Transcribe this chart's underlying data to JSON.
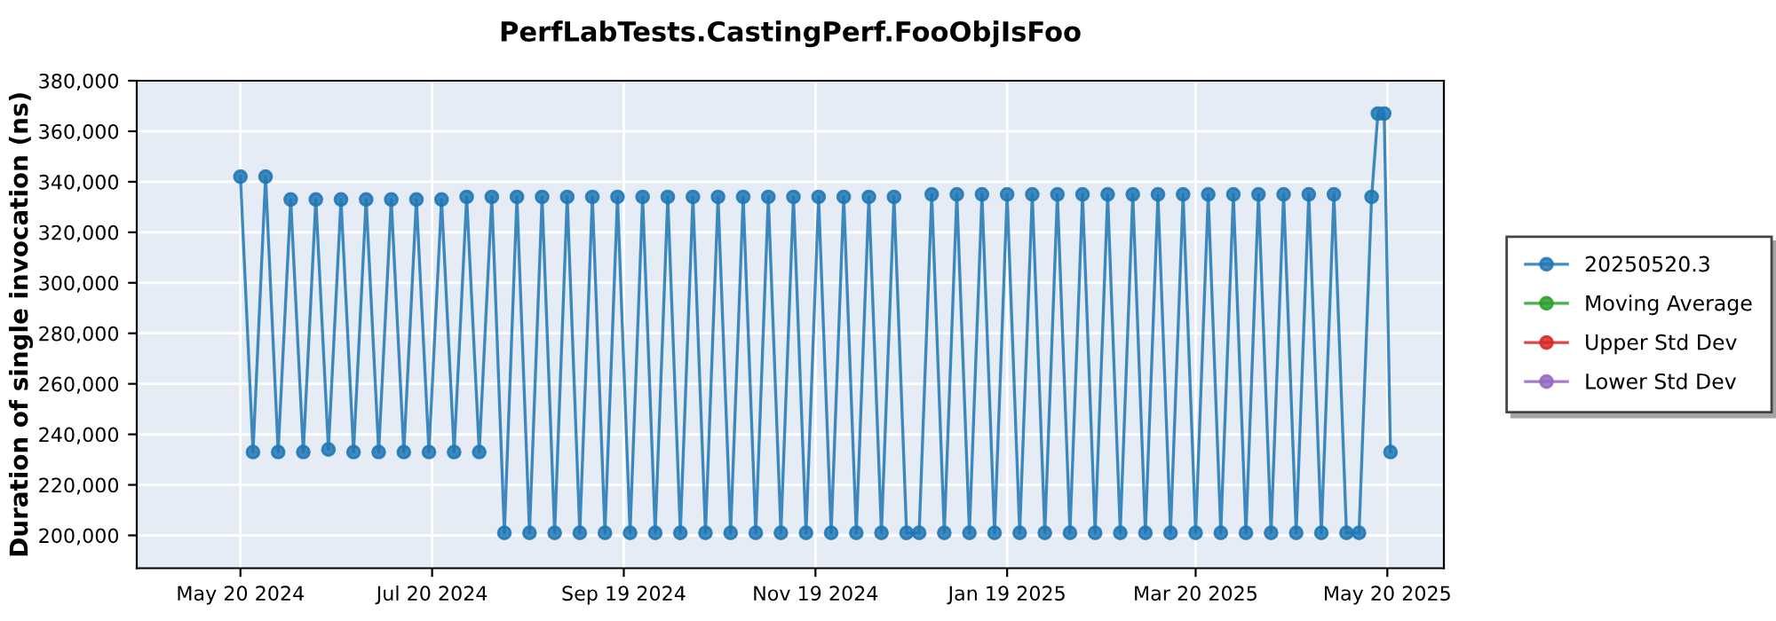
{
  "chart_data": {
    "type": "line",
    "title": "PerfLabTests.CastingPerf.FooObjIsFoo",
    "ylabel": "Duration of single invocation (ns)",
    "x": [
      "2024-05-20",
      "2024-05-24",
      "2024-05-28",
      "2024-06-01",
      "2024-06-05",
      "2024-06-09",
      "2024-06-13",
      "2024-06-17",
      "2024-06-21",
      "2024-06-25",
      "2024-06-29",
      "2024-07-03",
      "2024-07-07",
      "2024-07-11",
      "2024-07-15",
      "2024-07-19",
      "2024-07-23",
      "2024-07-27",
      "2024-07-31",
      "2024-08-04",
      "2024-08-08",
      "2024-08-12",
      "2024-08-16",
      "2024-08-20",
      "2024-08-24",
      "2024-08-28",
      "2024-09-01",
      "2024-09-05",
      "2024-09-09",
      "2024-09-13",
      "2024-09-17",
      "2024-09-21",
      "2024-09-25",
      "2024-09-29",
      "2024-10-03",
      "2024-10-07",
      "2024-10-11",
      "2024-10-15",
      "2024-10-19",
      "2024-10-23",
      "2024-10-27",
      "2024-10-31",
      "2024-11-04",
      "2024-11-08",
      "2024-11-12",
      "2024-11-16",
      "2024-11-20",
      "2024-11-24",
      "2024-11-28",
      "2024-12-02",
      "2024-12-06",
      "2024-12-10",
      "2024-12-14",
      "2024-12-18",
      "2024-12-22",
      "2024-12-26",
      "2024-12-30",
      "2025-01-03",
      "2025-01-07",
      "2025-01-11",
      "2025-01-15",
      "2025-01-19",
      "2025-01-23",
      "2025-01-27",
      "2025-01-31",
      "2025-02-04",
      "2025-02-08",
      "2025-02-12",
      "2025-02-16",
      "2025-02-20",
      "2025-02-24",
      "2025-02-28",
      "2025-03-04",
      "2025-03-08",
      "2025-03-12",
      "2025-03-16",
      "2025-03-20",
      "2025-03-24",
      "2025-03-28",
      "2025-04-01",
      "2025-04-05",
      "2025-04-09",
      "2025-04-13",
      "2025-04-17",
      "2025-04-21",
      "2025-04-25",
      "2025-04-29",
      "2025-05-03",
      "2025-05-07",
      "2025-05-11",
      "2025-05-15",
      "2025-05-17",
      "2025-05-19",
      "2025-05-21"
    ],
    "series": [
      {
        "name": "20250520.3",
        "color": "#1f77b4",
        "values": [
          342000,
          233000,
          342000,
          233000,
          333000,
          233000,
          333000,
          234000,
          333000,
          233000,
          333000,
          233000,
          333000,
          233000,
          333000,
          233000,
          333000,
          233000,
          334000,
          233000,
          334000,
          201000,
          334000,
          201000,
          334000,
          201000,
          334000,
          201000,
          334000,
          201000,
          334000,
          201000,
          334000,
          201000,
          334000,
          201000,
          334000,
          201000,
          334000,
          201000,
          334000,
          201000,
          334000,
          201000,
          334000,
          201000,
          334000,
          201000,
          334000,
          201000,
          334000,
          201000,
          334000,
          201000,
          201000,
          335000,
          201000,
          335000,
          201000,
          335000,
          201000,
          335000,
          201000,
          335000,
          201000,
          335000,
          201000,
          335000,
          201000,
          335000,
          201000,
          335000,
          201000,
          335000,
          201000,
          335000,
          201000,
          335000,
          201000,
          335000,
          201000,
          335000,
          201000,
          335000,
          201000,
          335000,
          201000,
          335000,
          201000,
          201000,
          334000,
          367000,
          367000,
          233000
        ]
      },
      {
        "name": "Moving Average",
        "color": "#2ca02c",
        "values": [
          null,
          null,
          null,
          null,
          null,
          null,
          null,
          null,
          null,
          null,
          null,
          null,
          null,
          null,
          null,
          null,
          null,
          null,
          null,
          null,
          null,
          null,
          null,
          null,
          null,
          null,
          null,
          null,
          null,
          null,
          null,
          null,
          null,
          null,
          null,
          null,
          null,
          null,
          null,
          null,
          null,
          null,
          null,
          null,
          null,
          null,
          null,
          null,
          null,
          null,
          null,
          null,
          null,
          null,
          null,
          null,
          null,
          null,
          null,
          null,
          null,
          null,
          null,
          null,
          null,
          null,
          null,
          null,
          null,
          null,
          null,
          null,
          null,
          null,
          null,
          null,
          null,
          null,
          null,
          null,
          null,
          null,
          null,
          null,
          null,
          null,
          null,
          null,
          null,
          null,
          null,
          null,
          null,
          null
        ]
      },
      {
        "name": "Upper Std Dev",
        "color": "#d62728",
        "values": [
          null,
          null,
          null,
          null,
          null,
          null,
          null,
          null,
          null,
          null,
          null,
          null,
          null,
          null,
          null,
          null,
          null,
          null,
          null,
          null,
          null,
          null,
          null,
          null,
          null,
          null,
          null,
          null,
          null,
          null,
          null,
          null,
          null,
          null,
          null,
          null,
          null,
          null,
          null,
          null,
          null,
          null,
          null,
          null,
          null,
          null,
          null,
          null,
          null,
          null,
          null,
          null,
          null,
          null,
          null,
          null,
          null,
          null,
          null,
          null,
          null,
          null,
          null,
          null,
          null,
          null,
          null,
          null,
          null,
          null,
          null,
          null,
          null,
          null,
          null,
          null,
          null,
          null,
          null,
          null,
          null,
          null,
          null,
          null,
          null,
          null,
          null,
          null,
          null,
          null,
          null,
          null,
          null,
          null
        ]
      },
      {
        "name": "Lower Std Dev",
        "color": "#9467bd",
        "values": [
          null,
          null,
          null,
          null,
          null,
          null,
          null,
          null,
          null,
          null,
          null,
          null,
          null,
          null,
          null,
          null,
          null,
          null,
          null,
          null,
          null,
          null,
          null,
          null,
          null,
          null,
          null,
          null,
          null,
          null,
          null,
          null,
          null,
          null,
          null,
          null,
          null,
          null,
          null,
          null,
          null,
          null,
          null,
          null,
          null,
          null,
          null,
          null,
          null,
          null,
          null,
          null,
          null,
          null,
          null,
          null,
          null,
          null,
          null,
          null,
          null,
          null,
          null,
          null,
          null,
          null,
          null,
          null,
          null,
          null,
          null,
          null,
          null,
          null,
          null,
          null,
          null,
          null,
          null,
          null,
          null,
          null,
          null,
          null,
          null,
          null,
          null,
          null,
          null,
          null,
          null,
          null,
          null,
          null
        ]
      }
    ],
    "xlim": [
      "2024-04-17",
      "2025-06-07"
    ],
    "xticks": [
      {
        "value": "2024-05-20",
        "label": "May 20 2024"
      },
      {
        "value": "2024-07-20",
        "label": "Jul 20 2024"
      },
      {
        "value": "2024-09-19",
        "label": "Sep 19 2024"
      },
      {
        "value": "2024-11-19",
        "label": "Nov 19 2024"
      },
      {
        "value": "2025-01-19",
        "label": "Jan 19 2025"
      },
      {
        "value": "2025-03-20",
        "label": "Mar 20 2025"
      },
      {
        "value": "2025-05-20",
        "label": "May 20 2025"
      }
    ],
    "ylim": [
      187000,
      380000
    ],
    "yticks": [
      {
        "value": 200000,
        "label": "200,000"
      },
      {
        "value": 220000,
        "label": "220,000"
      },
      {
        "value": 240000,
        "label": "240,000"
      },
      {
        "value": 260000,
        "label": "260,000"
      },
      {
        "value": 280000,
        "label": "280,000"
      },
      {
        "value": 300000,
        "label": "300,000"
      },
      {
        "value": 320000,
        "label": "320,000"
      },
      {
        "value": 340000,
        "label": "340,000"
      },
      {
        "value": 360000,
        "label": "360,000"
      },
      {
        "value": 380000,
        "label": "380,000"
      }
    ],
    "grid": true,
    "legend": "right",
    "marker": "circle",
    "line_style": "solid"
  }
}
